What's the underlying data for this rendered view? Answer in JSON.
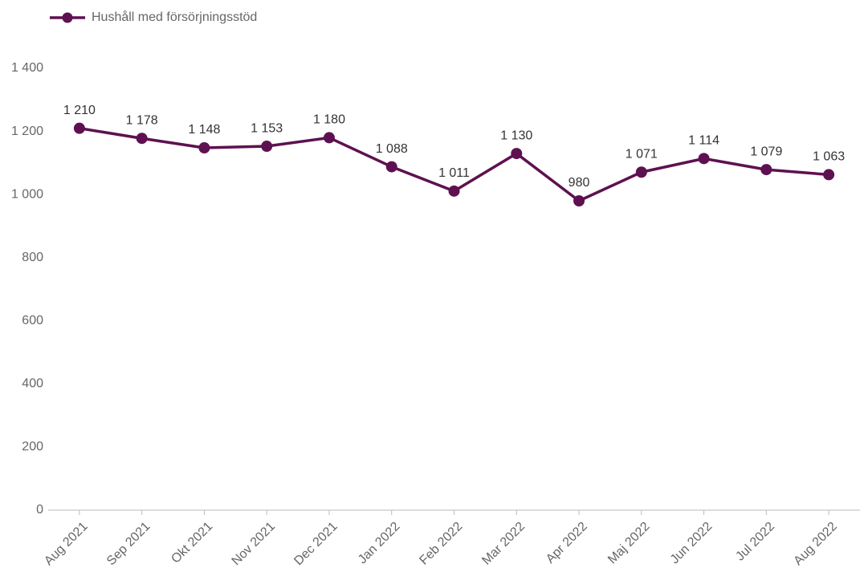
{
  "chart_data": {
    "type": "line",
    "categories": [
      "Aug 2021",
      "Sep 2021",
      "Okt 2021",
      "Nov 2021",
      "Dec 2021",
      "Jan 2022",
      "Feb 2022",
      "Mar 2022",
      "Apr 2022",
      "Maj 2022",
      "Jun 2022",
      "Jul 2022",
      "Aug 2022"
    ],
    "series": [
      {
        "name": "Hushåll med försörjningsstöd",
        "color": "#5e1150",
        "values": [
          1210,
          1178,
          1148,
          1153,
          1180,
          1088,
          1011,
          1130,
          980,
          1071,
          1114,
          1079,
          1063
        ],
        "value_labels": [
          "1 210",
          "1 178",
          "1 148",
          "1 153",
          "1 180",
          "1 088",
          "1 011",
          "1 130",
          "980",
          "1 071",
          "1 114",
          "1 079",
          "1 063"
        ]
      }
    ],
    "ylim": [
      0,
      1400
    ],
    "yticks": [
      0,
      200,
      400,
      600,
      800,
      {
        "value": 1000,
        "label": "1 000"
      },
      {
        "value": 1200,
        "label": "1 200"
      },
      {
        "value": 1400,
        "label": "1 400"
      }
    ],
    "grid": false,
    "legend": "top-left"
  }
}
